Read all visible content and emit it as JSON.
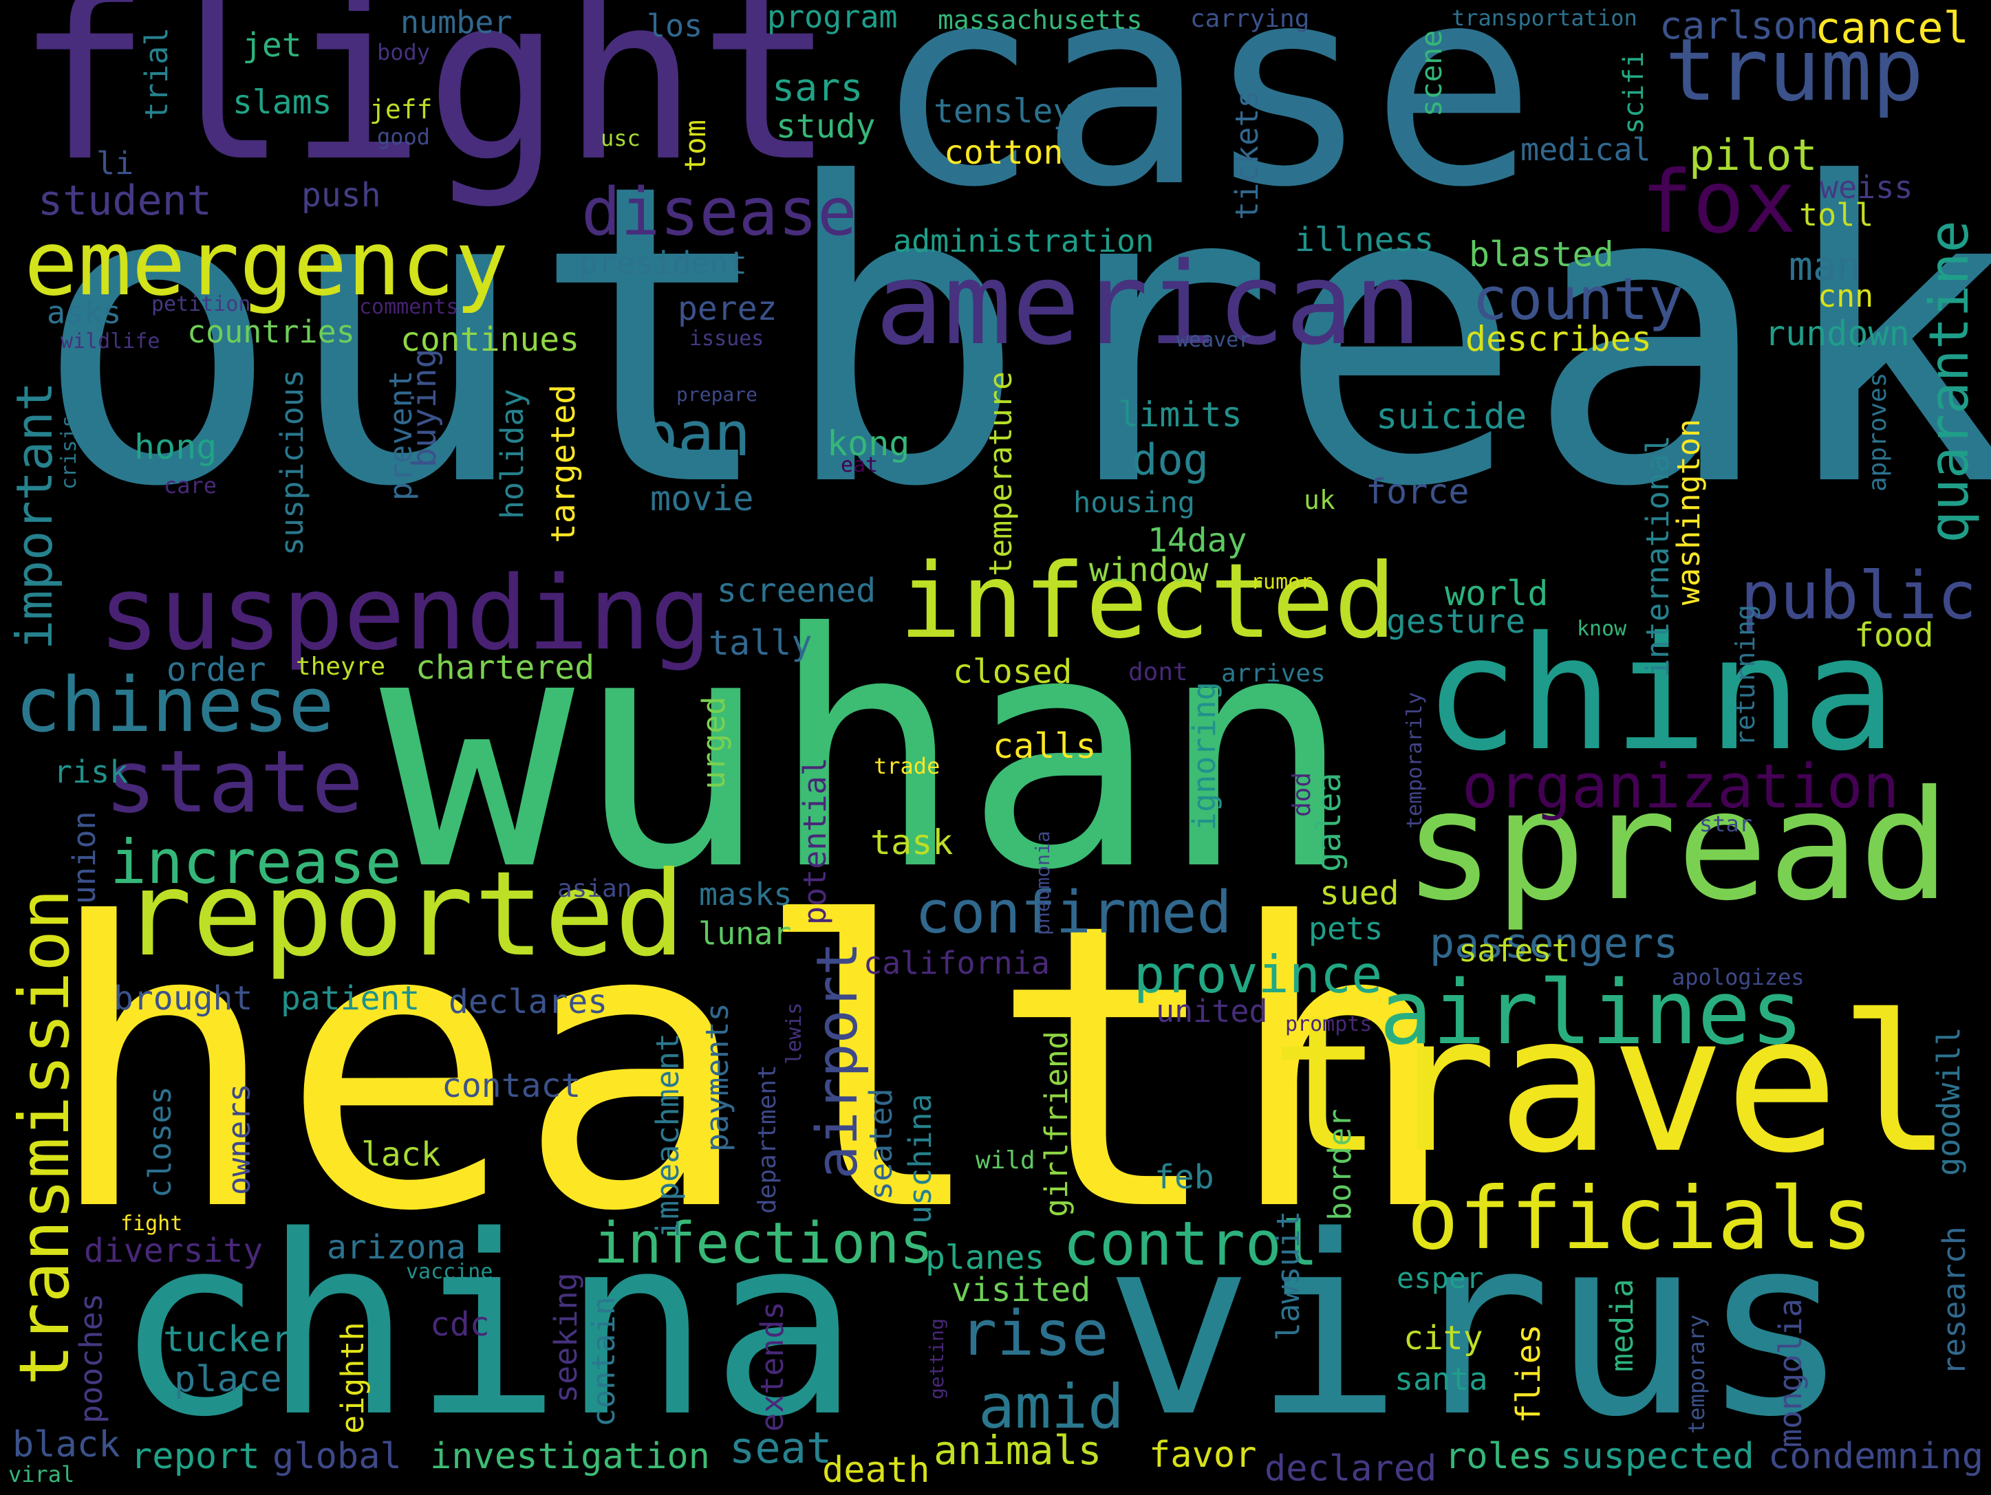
{
  "background": "#000000",
  "palette": [
    "#440154",
    "#482878",
    "#3e4989",
    "#31688e",
    "#26828e",
    "#1f9e89",
    "#35b779",
    "#6ece58",
    "#b5de2b",
    "#fde725"
  ],
  "words": [
    {
      "text": "outbreak",
      "color": "#2a788e",
      "rotated": false
    },
    {
      "text": "health",
      "color": "#fde725",
      "rotated": false
    },
    {
      "text": "wuhan",
      "color": "#3dbc74",
      "rotated": false
    },
    {
      "text": "case",
      "color": "#2c728e",
      "rotated": false
    },
    {
      "text": "flight",
      "color": "#472d7b",
      "rotated": false
    },
    {
      "text": "china",
      "color": "#21918c",
      "rotated": false
    },
    {
      "text": "virus",
      "color": "#26828e",
      "rotated": false
    },
    {
      "text": "travel",
      "color": "#f1e51d",
      "rotated": false
    },
    {
      "text": "china",
      "color": "#1e9b8a",
      "rotated": false
    },
    {
      "text": "spread",
      "color": "#7ad151",
      "rotated": false
    },
    {
      "text": "american",
      "color": "#46327e",
      "rotated": false
    },
    {
      "text": "reported",
      "color": "#bddf26",
      "rotated": false
    },
    {
      "text": "infected",
      "color": "#bddf26",
      "rotated": false
    },
    {
      "text": "suspending",
      "color": "#482173",
      "rotated": false
    },
    {
      "text": "emergency",
      "color": "#d2e21b",
      "rotated": false
    },
    {
      "text": "officials",
      "color": "#e2e418",
      "rotated": false
    },
    {
      "text": "airlines",
      "color": "#29af7f",
      "rotated": false
    },
    {
      "text": "trump",
      "color": "#3b528b",
      "rotated": false
    },
    {
      "text": "fox",
      "color": "#440154",
      "rotated": false
    },
    {
      "text": "state",
      "color": "#482878",
      "rotated": false
    },
    {
      "text": "chinese",
      "color": "#2a788e",
      "rotated": false
    },
    {
      "text": "disease",
      "color": "#472d7b",
      "rotated": false
    },
    {
      "text": "transmission",
      "color": "#d8e219",
      "rotated": true
    },
    {
      "text": "organization",
      "color": "#440154",
      "rotated": false
    },
    {
      "text": "increase",
      "color": "#35b779",
      "rotated": false
    },
    {
      "text": "confirmed",
      "color": "#31688e",
      "rotated": false
    },
    {
      "text": "control",
      "color": "#2db27d",
      "rotated": false
    },
    {
      "text": "infections",
      "color": "#38b977",
      "rotated": false
    },
    {
      "text": "public",
      "color": "#3e4989",
      "rotated": false
    },
    {
      "text": "county",
      "color": "#3b528b",
      "rotated": false
    },
    {
      "text": "quarantine",
      "color": "#1f9e89",
      "rotated": true
    },
    {
      "text": "airport",
      "color": "#3e4989",
      "rotated": true
    },
    {
      "text": "province",
      "color": "#22a884",
      "rotated": false
    },
    {
      "text": "important",
      "color": "#26828e",
      "rotated": true
    },
    {
      "text": "ban",
      "color": "#2a788e",
      "rotated": false
    },
    {
      "text": "rise",
      "color": "#2c728e",
      "rotated": false
    },
    {
      "text": "amid",
      "color": "#2a788e",
      "rotated": false
    },
    {
      "text": "passengers",
      "color": "#31688e",
      "rotated": false
    },
    {
      "text": "animals",
      "color": "#c2df23",
      "rotated": false
    },
    {
      "text": "seat",
      "color": "#26828e",
      "rotated": false
    },
    {
      "text": "investigation",
      "color": "#3dbc74",
      "rotated": false
    },
    {
      "text": "global",
      "color": "#3e4989",
      "rotated": false
    },
    {
      "text": "report",
      "color": "#20a386",
      "rotated": false
    },
    {
      "text": "black",
      "color": "#3b528b",
      "rotated": false
    },
    {
      "text": "viral",
      "color": "#35b779",
      "rotated": false
    },
    {
      "text": "death",
      "color": "#d8e219",
      "rotated": false
    },
    {
      "text": "favor",
      "color": "#d8e219",
      "rotated": false
    },
    {
      "text": "declared",
      "color": "#443983",
      "rotated": false
    },
    {
      "text": "roles",
      "color": "#35b779",
      "rotated": false
    },
    {
      "text": "suspected",
      "color": "#1f9e89",
      "rotated": false
    },
    {
      "text": "condemning",
      "color": "#3e4989",
      "rotated": false
    },
    {
      "text": "cancel",
      "color": "#fde725",
      "rotated": false
    },
    {
      "text": "carlson",
      "color": "#3b528b",
      "rotated": false
    },
    {
      "text": "pilot",
      "color": "#a8db34",
      "rotated": false
    },
    {
      "text": "man",
      "color": "#2c728e",
      "rotated": false
    },
    {
      "text": "cnn",
      "color": "#d8e219",
      "rotated": false
    },
    {
      "text": "rundown",
      "color": "#1f9e89",
      "rotated": false
    },
    {
      "text": "describes",
      "color": "#d8e219",
      "rotated": false
    },
    {
      "text": "blasted",
      "color": "#5ec962",
      "rotated": false
    },
    {
      "text": "weiss",
      "color": "#443983",
      "rotated": false
    },
    {
      "text": "toll",
      "color": "#c2df23",
      "rotated": false
    },
    {
      "text": "medical",
      "color": "#31688e",
      "rotated": false
    },
    {
      "text": "scene",
      "color": "#35b779",
      "rotated": true
    },
    {
      "text": "scifi",
      "color": "#22a884",
      "rotated": true
    },
    {
      "text": "transportation",
      "color": "#2c728e",
      "rotated": false
    },
    {
      "text": "carrying",
      "color": "#3b528b",
      "rotated": false
    },
    {
      "text": "massachusetts",
      "color": "#35b779",
      "rotated": false
    },
    {
      "text": "program",
      "color": "#1f9e89",
      "rotated": false
    },
    {
      "text": "los",
      "color": "#31688e",
      "rotated": false
    },
    {
      "text": "number",
      "color": "#31688e",
      "rotated": false
    },
    {
      "text": "jet",
      "color": "#2db27d",
      "rotated": false
    },
    {
      "text": "slams",
      "color": "#20a386",
      "rotated": false
    },
    {
      "text": "jeff",
      "color": "#bddf26",
      "rotated": false
    },
    {
      "text": "body",
      "color": "#46327e",
      "rotated": false
    },
    {
      "text": "good",
      "color": "#3e4989",
      "rotated": false
    },
    {
      "text": "usc",
      "color": "#a8db34",
      "rotated": false
    },
    {
      "text": "tom",
      "color": "#d8e219",
      "rotated": true
    },
    {
      "text": "trial",
      "color": "#26828e",
      "rotated": true
    },
    {
      "text": "li",
      "color": "#3b528b",
      "rotated": false
    },
    {
      "text": "student",
      "color": "#443983",
      "rotated": false
    },
    {
      "text": "push",
      "color": "#433e85",
      "rotated": false
    },
    {
      "text": "sars",
      "color": "#20a386",
      "rotated": false
    },
    {
      "text": "study",
      "color": "#35b779",
      "rotated": false
    },
    {
      "text": "tensley",
      "color": "#2c728e",
      "rotated": false
    },
    {
      "text": "cotton",
      "color": "#fde725",
      "rotated": false
    },
    {
      "text": "tickets",
      "color": "#31688e",
      "rotated": true
    },
    {
      "text": "administration",
      "color": "#1f9e89",
      "rotated": false
    },
    {
      "text": "illness",
      "color": "#21918c",
      "rotated": false
    },
    {
      "text": "president",
      "color": "#2c728e",
      "rotated": false
    },
    {
      "text": "perez",
      "color": "#3b528b",
      "rotated": false
    },
    {
      "text": "asks",
      "color": "#2c728e",
      "rotated": false
    },
    {
      "text": "countries",
      "color": "#6ece58",
      "rotated": false
    },
    {
      "text": "continues",
      "color": "#8fd744",
      "rotated": false
    },
    {
      "text": "petition",
      "color": "#443983",
      "rotated": false
    },
    {
      "text": "comments",
      "color": "#482173",
      "rotated": false
    },
    {
      "text": "issues",
      "color": "#443983",
      "rotated": false
    },
    {
      "text": "wildlife",
      "color": "#46327e",
      "rotated": false
    },
    {
      "text": "weaver",
      "color": "#3b528b",
      "rotated": false
    },
    {
      "text": "prepare",
      "color": "#3e4989",
      "rotated": false
    },
    {
      "text": "hong",
      "color": "#20a386",
      "rotated": false
    },
    {
      "text": "kong",
      "color": "#35b779",
      "rotated": false
    },
    {
      "text": "suspicious",
      "color": "#2a788e",
      "rotated": true
    },
    {
      "text": "buying",
      "color": "#3b528b",
      "rotated": true
    },
    {
      "text": "prevent",
      "color": "#31688e",
      "rotated": true
    },
    {
      "text": "holiday",
      "color": "#26828e",
      "rotated": true
    },
    {
      "text": "targeted",
      "color": "#fde725",
      "rotated": true
    },
    {
      "text": "care",
      "color": "#482878",
      "rotated": false
    },
    {
      "text": "crisis",
      "color": "#2a788e",
      "rotated": true
    },
    {
      "text": "eat",
      "color": "#440154",
      "rotated": false
    },
    {
      "text": "movie",
      "color": "#2c728e",
      "rotated": false
    },
    {
      "text": "dog",
      "color": "#26828e",
      "rotated": false
    },
    {
      "text": "limits",
      "color": "#21918c",
      "rotated": false
    },
    {
      "text": "temperature",
      "color": "#b5de2b",
      "rotated": true
    },
    {
      "text": "housing",
      "color": "#26828e",
      "rotated": false
    },
    {
      "text": "suicide",
      "color": "#21918c",
      "rotated": false
    },
    {
      "text": "uk",
      "color": "#8fd744",
      "rotated": false
    },
    {
      "text": "force",
      "color": "#3b528b",
      "rotated": false
    },
    {
      "text": "international",
      "color": "#26828e",
      "rotated": true
    },
    {
      "text": "washington",
      "color": "#fde725",
      "rotated": true
    },
    {
      "text": "approves",
      "color": "#2c728e",
      "rotated": true
    },
    {
      "text": "14day",
      "color": "#5ec962",
      "rotated": false
    },
    {
      "text": "window",
      "color": "#8fd744",
      "rotated": false
    },
    {
      "text": "world",
      "color": "#2db27d",
      "rotated": false
    },
    {
      "text": "gesture",
      "color": "#21918c",
      "rotated": false
    },
    {
      "text": "rumor",
      "color": "#d8e219",
      "rotated": false
    },
    {
      "text": "know",
      "color": "#35b779",
      "rotated": false
    },
    {
      "text": "food",
      "color": "#b5de2b",
      "rotated": false
    },
    {
      "text": "returning",
      "color": "#2c728e",
      "rotated": true
    },
    {
      "text": "screened",
      "color": "#2c728e",
      "rotated": false
    },
    {
      "text": "tally",
      "color": "#31688e",
      "rotated": false
    },
    {
      "text": "order",
      "color": "#2c728e",
      "rotated": false
    },
    {
      "text": "theyre",
      "color": "#bddf26",
      "rotated": false
    },
    {
      "text": "chartered",
      "color": "#7ad151",
      "rotated": false
    },
    {
      "text": "closed",
      "color": "#c2df23",
      "rotated": false
    },
    {
      "text": "dont",
      "color": "#482878",
      "rotated": false
    },
    {
      "text": "arrives",
      "color": "#2a788e",
      "rotated": false
    },
    {
      "text": "risk",
      "color": "#21918c",
      "rotated": false
    },
    {
      "text": "urged",
      "color": "#7ad151",
      "rotated": true
    },
    {
      "text": "calls",
      "color": "#fde725",
      "rotated": false
    },
    {
      "text": "trade",
      "color": "#fde725",
      "rotated": false
    },
    {
      "text": "ignoring",
      "color": "#21918c",
      "rotated": true
    },
    {
      "text": "galea",
      "color": "#35b779",
      "rotated": true
    },
    {
      "text": "dod",
      "color": "#482878",
      "rotated": true
    },
    {
      "text": "temporarily",
      "color": "#414487",
      "rotated": true
    },
    {
      "text": "star",
      "color": "#3e4989",
      "rotated": false
    },
    {
      "text": "potential",
      "color": "#482878",
      "rotated": true
    },
    {
      "text": "pneumonia",
      "color": "#3e4989",
      "rotated": true
    },
    {
      "text": "task",
      "color": "#bddf26",
      "rotated": false
    },
    {
      "text": "union",
      "color": "#3b528b",
      "rotated": true
    },
    {
      "text": "asian",
      "color": "#3e4989",
      "rotated": false
    },
    {
      "text": "masks",
      "color": "#2c728e",
      "rotated": false
    },
    {
      "text": "lunar",
      "color": "#5ec962",
      "rotated": false
    },
    {
      "text": "sued",
      "color": "#bddf26",
      "rotated": false
    },
    {
      "text": "pets",
      "color": "#1f9e89",
      "rotated": false
    },
    {
      "text": "safest",
      "color": "#bddf26",
      "rotated": false
    },
    {
      "text": "california",
      "color": "#482878",
      "rotated": false
    },
    {
      "text": "apologizes",
      "color": "#3e4989",
      "rotated": false
    },
    {
      "text": "brought",
      "color": "#3b528b",
      "rotated": false
    },
    {
      "text": "patient",
      "color": "#21918c",
      "rotated": false
    },
    {
      "text": "declares",
      "color": "#3b528b",
      "rotated": false
    },
    {
      "text": "united",
      "color": "#472d7b",
      "rotated": false
    },
    {
      "text": "prompts",
      "color": "#482878",
      "rotated": false
    },
    {
      "text": "goodwill",
      "color": "#2c728e",
      "rotated": true
    },
    {
      "text": "payments",
      "color": "#31688e",
      "rotated": true
    },
    {
      "text": "impeachment",
      "color": "#2a788e",
      "rotated": true
    },
    {
      "text": "department",
      "color": "#3e4989",
      "rotated": true
    },
    {
      "text": "lewis",
      "color": "#46327e",
      "rotated": true
    },
    {
      "text": "contact",
      "color": "#3b528b",
      "rotated": false
    },
    {
      "text": "closes",
      "color": "#2c728e",
      "rotated": true
    },
    {
      "text": "owners",
      "color": "#3e4989",
      "rotated": true
    },
    {
      "text": "lack",
      "color": "#a8db34",
      "rotated": false
    },
    {
      "text": "seated",
      "color": "#31688e",
      "rotated": true
    },
    {
      "text": "uschina",
      "color": "#26828e",
      "rotated": true
    },
    {
      "text": "girlfriend",
      "color": "#8fd744",
      "rotated": true
    },
    {
      "text": "wild",
      "color": "#5ec962",
      "rotated": false
    },
    {
      "text": "feb",
      "color": "#26828e",
      "rotated": false
    },
    {
      "text": "border",
      "color": "#5ec962",
      "rotated": true
    },
    {
      "text": "lawsuit",
      "color": "#2c728e",
      "rotated": true
    },
    {
      "text": "fight",
      "color": "#fde725",
      "rotated": false
    },
    {
      "text": "diversity",
      "color": "#482878",
      "rotated": false
    },
    {
      "text": "arizona",
      "color": "#2c728e",
      "rotated": false
    },
    {
      "text": "vaccine",
      "color": "#21918c",
      "rotated": false
    },
    {
      "text": "planes",
      "color": "#22a884",
      "rotated": false
    },
    {
      "text": "visited",
      "color": "#6ece58",
      "rotated": false
    },
    {
      "text": "esper",
      "color": "#1f9e89",
      "rotated": false
    },
    {
      "text": "research",
      "color": "#31688e",
      "rotated": true
    },
    {
      "text": "media",
      "color": "#2db27d",
      "rotated": true
    },
    {
      "text": "mongolia",
      "color": "#3e4989",
      "rotated": true
    },
    {
      "text": "temporary",
      "color": "#3b528b",
      "rotated": true
    },
    {
      "text": "tucker",
      "color": "#21918c",
      "rotated": false
    },
    {
      "text": "place",
      "color": "#2a788e",
      "rotated": false
    },
    {
      "text": "pooches",
      "color": "#443983",
      "rotated": true
    },
    {
      "text": "cdc",
      "color": "#482878",
      "rotated": false
    },
    {
      "text": "seeking",
      "color": "#46327e",
      "rotated": true
    },
    {
      "text": "contain",
      "color": "#2a788e",
      "rotated": true
    },
    {
      "text": "eighth",
      "color": "#e2e418",
      "rotated": true
    },
    {
      "text": "extends",
      "color": "#482878",
      "rotated": true
    },
    {
      "text": "getting",
      "color": "#482878",
      "rotated": true
    },
    {
      "text": "city",
      "color": "#bddf26",
      "rotated": false
    },
    {
      "text": "santa",
      "color": "#1f9e89",
      "rotated": false
    },
    {
      "text": "flies",
      "color": "#fde725",
      "rotated": true
    }
  ]
}
